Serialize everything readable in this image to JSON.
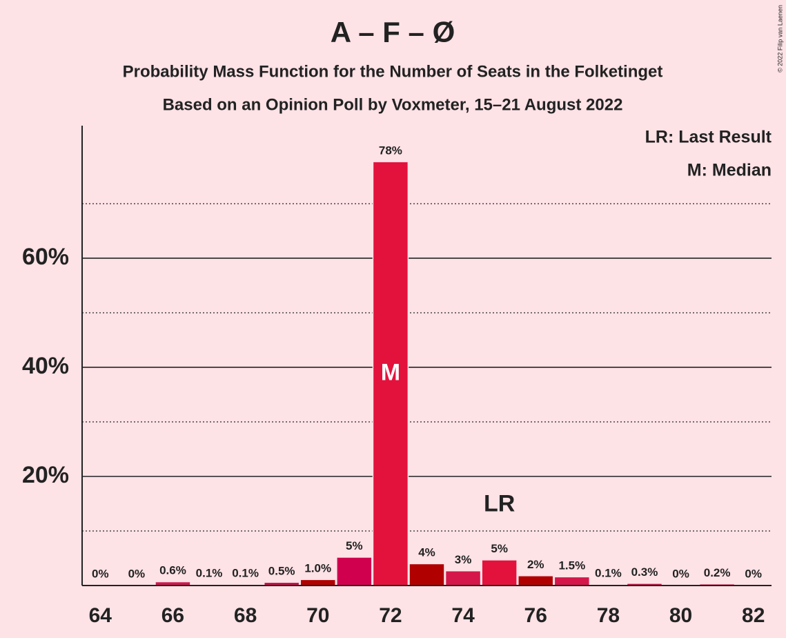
{
  "chart_data": {
    "type": "bar",
    "title": "A – F – Ø",
    "subtitles": [
      "Probability Mass Function for the Number of Seats in the Folketinget",
      "Based on an Opinion Poll by Voxmeter, 15–21 August 2022"
    ],
    "x": [
      64,
      65,
      66,
      67,
      68,
      69,
      70,
      71,
      72,
      73,
      74,
      75,
      76,
      77,
      78,
      79,
      80,
      81,
      82
    ],
    "values": [
      0,
      0,
      0.6,
      0.1,
      0.1,
      0.5,
      1.0,
      5.1,
      77.6,
      3.9,
      2.6,
      4.6,
      1.7,
      1.5,
      0.1,
      0.3,
      0,
      0.2,
      0
    ],
    "value_labels": [
      "0%",
      "0%",
      "0.6%",
      "0.1%",
      "0.1%",
      "0.5%",
      "1.0%",
      "5%",
      "78%",
      "4%",
      "3%",
      "5%",
      "2%",
      "1.5%",
      "0.1%",
      "0.3%",
      "0%",
      "0.2%",
      "0%"
    ],
    "colors": [
      "#e3123d",
      "#e3123d",
      "#cc1a4f",
      "#cc1a4f",
      "#cc1a4f",
      "#c8104a",
      "#b00000",
      "#d1004f",
      "#e3123d",
      "#b00000",
      "#d4164a",
      "#e3123d",
      "#b00000",
      "#d4164a",
      "#d4164a",
      "#c8104a",
      "#d4164a",
      "#d4164a",
      "#d4164a"
    ],
    "xlim": [
      63.5,
      82.5
    ],
    "xticks": [
      64,
      66,
      68,
      70,
      72,
      74,
      76,
      78,
      80,
      82
    ],
    "ylim": [
      0,
      84.3
    ],
    "yticks": [
      {
        "value": 20,
        "label": "20%"
      },
      {
        "value": 40,
        "label": "40%"
      },
      {
        "value": 60,
        "label": "60%"
      }
    ],
    "minor_yticks": [
      10,
      30,
      50,
      70
    ],
    "grid": true,
    "notes": [
      "LR: Last Result",
      "M: Median"
    ],
    "legend_position": "top-right",
    "annotations": [
      {
        "text": "M",
        "x": 72
      },
      {
        "text": "LR",
        "x": 75
      }
    ],
    "credit": "© 2022 Filip van Laenen"
  }
}
